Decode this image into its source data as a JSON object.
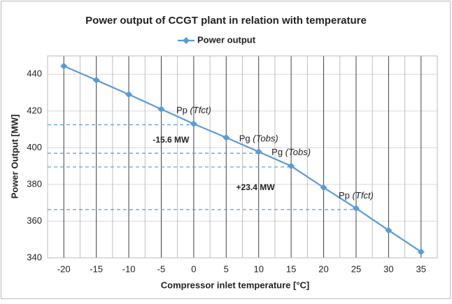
{
  "chart_data": {
    "type": "line",
    "title": "Power output of CCGT plant in relation with temperature",
    "x_label": "Compressor inlet temperature [°C]",
    "y_label": "Power Output [MW]",
    "x": [
      -20,
      -15,
      -10,
      -5,
      0,
      5,
      10,
      15,
      20,
      25,
      30,
      35
    ],
    "series": [
      {
        "name": "Power output",
        "color": "#5b9bd5",
        "values": [
          444.5,
          436.8,
          429,
          421,
          413,
          405.5,
          397.8,
          390,
          378.3,
          367,
          355,
          343.3
        ]
      }
    ],
    "xlim": [
      -22.5,
      37.5
    ],
    "xticks": [
      -20,
      -15,
      -10,
      -5,
      0,
      5,
      10,
      15,
      20,
      25,
      30,
      35
    ],
    "ylim": [
      340,
      450
    ],
    "yticks": [
      340,
      360,
      380,
      400,
      420,
      440
    ],
    "grid": true,
    "minor_xgrid": true,
    "legend": "top",
    "reference_lines": [
      {
        "y": 412.5,
        "x_end": 0
      },
      {
        "y": 397,
        "x_end": 10
      },
      {
        "y": 389.5,
        "x_end": 15
      },
      {
        "y": 366.3,
        "x_end": 25
      }
    ],
    "annotations": [
      {
        "text": "Pp",
        "italic": "(Tfct)",
        "x": 0,
        "y": 420
      },
      {
        "text": "Pg",
        "italic": "(Tobs)",
        "x": 10,
        "y": 404.5
      },
      {
        "text": "Pg",
        "italic": "(Tobs)",
        "x": 15,
        "y": 397
      },
      {
        "text": "Pp",
        "italic": "(Tfct)",
        "x": 25,
        "y": 373.5
      },
      {
        "text": "-15.6 MW",
        "bold": true,
        "x": -3.5,
        "y": 404
      },
      {
        "text": "+23.4 MW",
        "bold": true,
        "x": 9.5,
        "y": 378
      }
    ]
  }
}
